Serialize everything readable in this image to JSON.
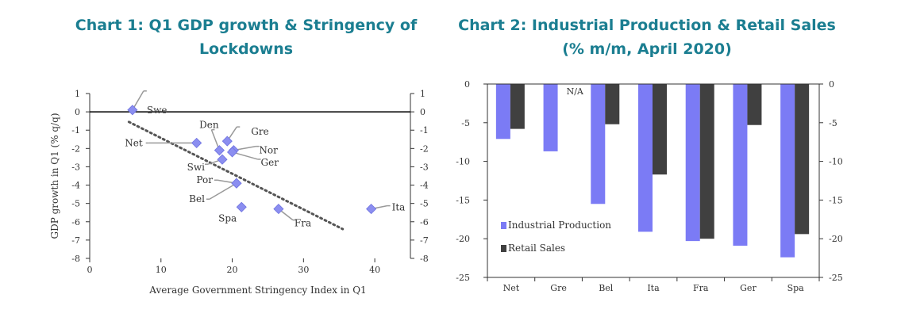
{
  "chart_data": [
    {
      "type": "scatter",
      "title": "Chart 1: Q1 GDP growth & Stringency of Lockdowns",
      "xlabel": "Average Government Stringency Index in Q1",
      "ylabel": "GDP growth in Q1 (% q/q)",
      "xlim": [
        0,
        45
      ],
      "ylim": [
        -8,
        1
      ],
      "x_ticks": [
        0,
        10,
        20,
        30,
        40
      ],
      "y_ticks": [
        1,
        0,
        -1,
        -2,
        -3,
        -4,
        -5,
        -6,
        -7,
        -8
      ],
      "points": [
        {
          "label": "Swe",
          "x": 6,
          "y": 0.1
        },
        {
          "label": "Net",
          "x": 15,
          "y": -1.7
        },
        {
          "label": "Den",
          "x": 18.2,
          "y": -2.1
        },
        {
          "label": "Gre",
          "x": 19.3,
          "y": -1.6
        },
        {
          "label": "Nor",
          "x": 20.2,
          "y": -2.1
        },
        {
          "label": "Ger",
          "x": 20,
          "y": -2.2
        },
        {
          "label": "Swi",
          "x": 18.6,
          "y": -2.6
        },
        {
          "label": "Por",
          "x": 20.6,
          "y": -3.9
        },
        {
          "label": "Bel",
          "x": 20.6,
          "y": -3.9
        },
        {
          "label": "Spa",
          "x": 21.3,
          "y": -5.2
        },
        {
          "label": "Fra",
          "x": 26.5,
          "y": -5.3
        },
        {
          "label": "Ita",
          "x": 39.5,
          "y": -5.3
        }
      ],
      "trendline": {
        "x": [
          5.5,
          35.5
        ],
        "y": [
          -0.55,
          -6.4
        ]
      }
    },
    {
      "type": "bar",
      "title": "Chart 2: Industrial Production & Retail Sales (% m/m, April 2020)",
      "categories": [
        "Net",
        "Gre",
        "Bel",
        "Ita",
        "Fra",
        "Ger",
        "Spa"
      ],
      "series": [
        {
          "name": "Industrial Production",
          "color": "#7b7bf5",
          "values": [
            -7.1,
            -8.7,
            -15.5,
            -19.1,
            -20.3,
            -20.9,
            -22.4
          ]
        },
        {
          "name": "Retail Sales",
          "color": "#404040",
          "values": [
            -5.8,
            null,
            -5.2,
            -11.7,
            -20.0,
            -5.3,
            -19.4
          ]
        }
      ],
      "annotations": [
        {
          "text": "N/A",
          "category": "Gre"
        }
      ],
      "ylim": [
        -25,
        0
      ],
      "y_ticks": [
        0,
        -5,
        -10,
        -15,
        -20,
        -25
      ]
    }
  ]
}
